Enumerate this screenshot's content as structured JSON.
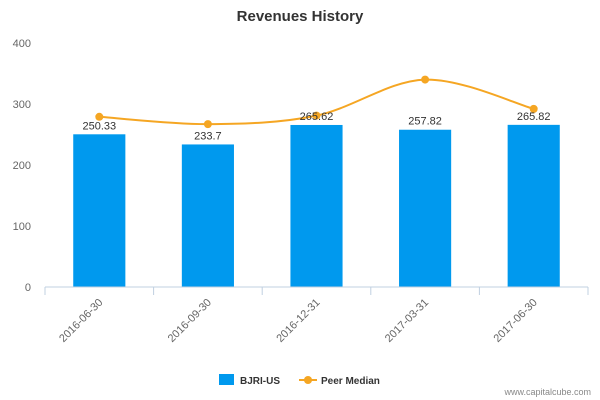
{
  "chart_data": {
    "type": "bar",
    "title": "Revenues History",
    "categories": [
      "2016-06-30",
      "2016-09-30",
      "2016-12-31",
      "2017-03-31",
      "2017-06-30"
    ],
    "series": [
      {
        "name": "BJRI-US",
        "type": "bar",
        "color": "#0099ee",
        "values": [
          250.33,
          233.7,
          265.62,
          257.82,
          265.82
        ],
        "labels": [
          "250.33",
          "233.7",
          "265.62",
          "257.82",
          "265.82"
        ]
      },
      {
        "name": "Peer Median",
        "type": "line",
        "color": "#f5a623",
        "values": [
          279,
          267,
          281,
          340,
          292
        ]
      }
    ],
    "ylim": [
      0,
      400
    ],
    "yticks": [
      0,
      100,
      200,
      300,
      400
    ],
    "xlabel": "",
    "ylabel": "",
    "grid": false,
    "legend": "bottom-center"
  },
  "credit": "www.capitalcube.com"
}
